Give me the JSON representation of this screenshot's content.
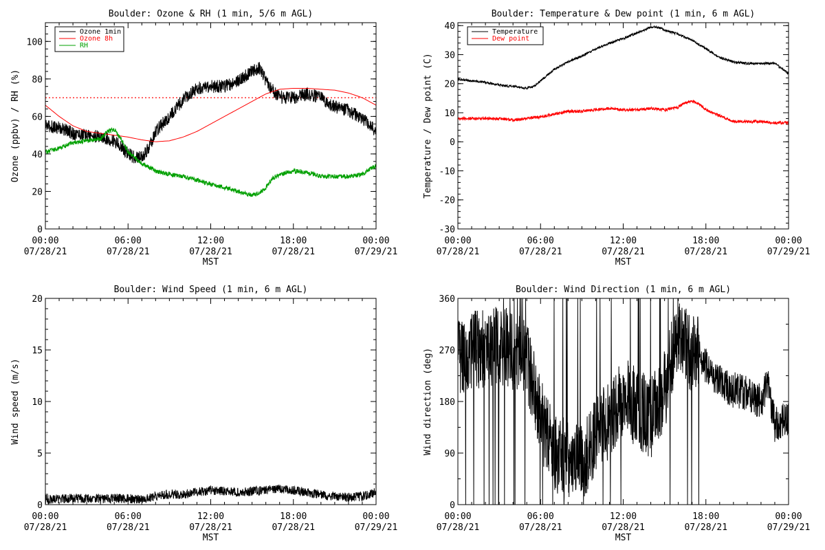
{
  "chart_data": [
    {
      "type": "line",
      "title": "Boulder: Ozone & RH (1 min, 5/6 m AGL)",
      "xlabel": "MST",
      "ylabel": "Ozone (ppbv) / RH (%)",
      "xlim": [
        0,
        24
      ],
      "ylim": [
        0,
        110
      ],
      "yticks": [
        0,
        20,
        40,
        60,
        80,
        100
      ],
      "xticks": [
        {
          "x": 0,
          "time": "00:00",
          "date": "07/28/21"
        },
        {
          "x": 6,
          "time": "06:00",
          "date": "07/28/21"
        },
        {
          "x": 12,
          "time": "12:00",
          "date": "07/28/21"
        },
        {
          "x": 18,
          "time": "18:00",
          "date": "07/28/21"
        },
        {
          "x": 24,
          "time": "00:00",
          "date": "07/29/21"
        }
      ],
      "legend_position": "top-left",
      "reference_line": {
        "y": 70,
        "color": "#ff0000",
        "style": "dotted"
      },
      "series": [
        {
          "name": "Ozone 1min",
          "color": "#000000",
          "noise": 3.5,
          "x": [
            0,
            1,
            2,
            3,
            4,
            5,
            5.5,
            6,
            6.5,
            7,
            7.5,
            8,
            9,
            10,
            11,
            12,
            13,
            14,
            15,
            15.5,
            16,
            16.5,
            17,
            18,
            19,
            20,
            21,
            22,
            23,
            24
          ],
          "y": [
            55,
            54,
            51,
            50,
            49,
            47,
            44,
            40,
            38,
            38,
            43,
            52,
            60,
            69,
            75,
            76,
            76,
            79,
            84,
            86,
            79,
            74,
            70,
            70,
            72,
            70,
            65,
            63,
            59,
            52
          ]
        },
        {
          "name": "Ozone 8h",
          "color": "#ff0000",
          "noise": 0,
          "x": [
            0,
            1,
            2,
            3,
            4,
            5,
            6,
            7,
            8,
            9,
            10,
            11,
            12,
            13,
            14,
            15,
            16,
            17,
            18,
            19,
            20,
            21,
            22,
            23,
            24
          ],
          "y": [
            66,
            60,
            55,
            52,
            51,
            50,
            49,
            47.5,
            46.5,
            47,
            49,
            52,
            56,
            60,
            64,
            68,
            72,
            74.5,
            75,
            75,
            74.5,
            74,
            72.5,
            70,
            66
          ]
        },
        {
          "name": "RH",
          "color": "#00a000",
          "noise": 1.2,
          "x": [
            0,
            1,
            2,
            3,
            4,
            4.5,
            5,
            5.5,
            6,
            6.5,
            7,
            8,
            9,
            10,
            11,
            12,
            13,
            14,
            15,
            15.5,
            16,
            16.5,
            17,
            18,
            19,
            20,
            21,
            22,
            23,
            24
          ],
          "y": [
            41,
            43,
            46,
            47,
            48,
            52,
            53,
            48,
            41,
            38,
            35,
            31,
            29,
            28,
            26,
            24,
            22,
            20,
            18,
            19,
            22,
            27,
            29,
            31,
            30,
            28,
            28,
            28,
            29,
            34
          ]
        }
      ]
    },
    {
      "type": "line",
      "title": "Boulder: Temperature & Dew point (1 min, 6 m AGL)",
      "xlabel": "MST",
      "ylabel": "Temperature / Dew point (C)",
      "xlim": [
        0,
        24
      ],
      "ylim": [
        -30,
        41
      ],
      "yticks": [
        -30,
        -20,
        -10,
        0,
        10,
        20,
        30,
        40
      ],
      "xticks": [
        {
          "x": 0,
          "time": "00:00",
          "date": "07/28/21"
        },
        {
          "x": 6,
          "time": "06:00",
          "date": "07/28/21"
        },
        {
          "x": 12,
          "time": "12:00",
          "date": "07/28/21"
        },
        {
          "x": 18,
          "time": "18:00",
          "date": "07/28/21"
        },
        {
          "x": 24,
          "time": "00:00",
          "date": "07/29/21"
        }
      ],
      "legend_position": "top-left",
      "series": [
        {
          "name": "Temperature",
          "color": "#000000",
          "noise": 0.4,
          "x": [
            0,
            1,
            2,
            3,
            4,
            5,
            5.5,
            6,
            7,
            8,
            9,
            10,
            11,
            12,
            13,
            14,
            14.5,
            15,
            16,
            17,
            18,
            19,
            20,
            21,
            22,
            23,
            24
          ],
          "y": [
            21.5,
            21,
            20.5,
            19.5,
            19,
            18.5,
            19,
            21,
            25,
            27.5,
            29.5,
            32,
            34,
            35.5,
            37.5,
            39.5,
            39.5,
            38.5,
            37,
            35,
            32,
            29,
            27.5,
            27,
            27,
            27,
            23.5
          ]
        },
        {
          "name": "Dew point",
          "color": "#ff0000",
          "noise": 0.5,
          "x": [
            0,
            1,
            2,
            3,
            4,
            5,
            6,
            7,
            8,
            9,
            10,
            11,
            12,
            13,
            14,
            15,
            16,
            16.5,
            17,
            17.5,
            18,
            19,
            20,
            21,
            22,
            23,
            24
          ],
          "y": [
            8,
            8,
            8,
            8,
            7.5,
            8,
            8.5,
            9.5,
            10.5,
            10.5,
            11,
            11.5,
            11,
            11,
            11.5,
            11,
            12,
            13.5,
            14,
            13,
            11,
            9,
            7,
            7,
            7,
            6.5,
            6.5
          ]
        }
      ]
    },
    {
      "type": "line",
      "title": "Boulder: Wind Speed (1 min, 6 m AGL)",
      "xlabel": "MST",
      "ylabel": "Wind speed (m/s)",
      "xlim": [
        0,
        24
      ],
      "ylim": [
        0,
        20
      ],
      "yticks": [
        0,
        5,
        10,
        15,
        20
      ],
      "xticks": [
        {
          "x": 0,
          "time": "00:00",
          "date": "07/28/21"
        },
        {
          "x": 6,
          "time": "06:00",
          "date": "07/28/21"
        },
        {
          "x": 12,
          "time": "12:00",
          "date": "07/28/21"
        },
        {
          "x": 18,
          "time": "18:00",
          "date": "07/28/21"
        },
        {
          "x": 24,
          "time": "00:00",
          "date": "07/29/21"
        }
      ],
      "legend_position": "none",
      "series": [
        {
          "name": "",
          "color": "#000000",
          "noise": 0.45,
          "floor": 0,
          "x": [
            0,
            2,
            4,
            6,
            7,
            8,
            9,
            10,
            11,
            12,
            13,
            14,
            15,
            16,
            17,
            18,
            19,
            20,
            21,
            22,
            23,
            24
          ],
          "y": [
            0.5,
            0.6,
            0.6,
            0.6,
            0.5,
            0.8,
            1.0,
            1.0,
            1.2,
            1.4,
            1.3,
            1.2,
            1.3,
            1.4,
            1.5,
            1.4,
            1.2,
            1.0,
            0.8,
            0.7,
            0.8,
            1.2
          ]
        }
      ]
    },
    {
      "type": "line",
      "title": "Boulder: Wind Direction (1 min, 6 m AGL)",
      "xlabel": "MST",
      "ylabel": "Wind direction (deg)",
      "xlim": [
        0,
        24
      ],
      "ylim": [
        0,
        360
      ],
      "yticks": [
        0,
        90,
        180,
        270,
        360
      ],
      "xticks": [
        {
          "x": 0,
          "time": "00:00",
          "date": "07/28/21"
        },
        {
          "x": 6,
          "time": "06:00",
          "date": "07/28/21"
        },
        {
          "x": 12,
          "time": "12:00",
          "date": "07/28/21"
        },
        {
          "x": 18,
          "time": "18:00",
          "date": "07/28/21"
        },
        {
          "x": 24,
          "time": "00:00",
          "date": "07/29/21"
        }
      ],
      "legend_position": "none",
      "series": [
        {
          "name": "",
          "color": "#000000",
          "noise": 70,
          "floor": 0,
          "ceil": 360,
          "spikes": true,
          "x": [
            0,
            1,
            2,
            3,
            4,
            5,
            6,
            7,
            8,
            9,
            10,
            11,
            12,
            13,
            14,
            15,
            16,
            17,
            17.5,
            18,
            19,
            20,
            21,
            22,
            22.5,
            23,
            24
          ],
          "y": [
            260,
            270,
            270,
            280,
            270,
            250,
            150,
            90,
            80,
            70,
            120,
            150,
            190,
            170,
            150,
            200,
            300,
            260,
            270,
            240,
            215,
            200,
            195,
            180,
            210,
            140,
            150
          ]
        }
      ]
    }
  ]
}
